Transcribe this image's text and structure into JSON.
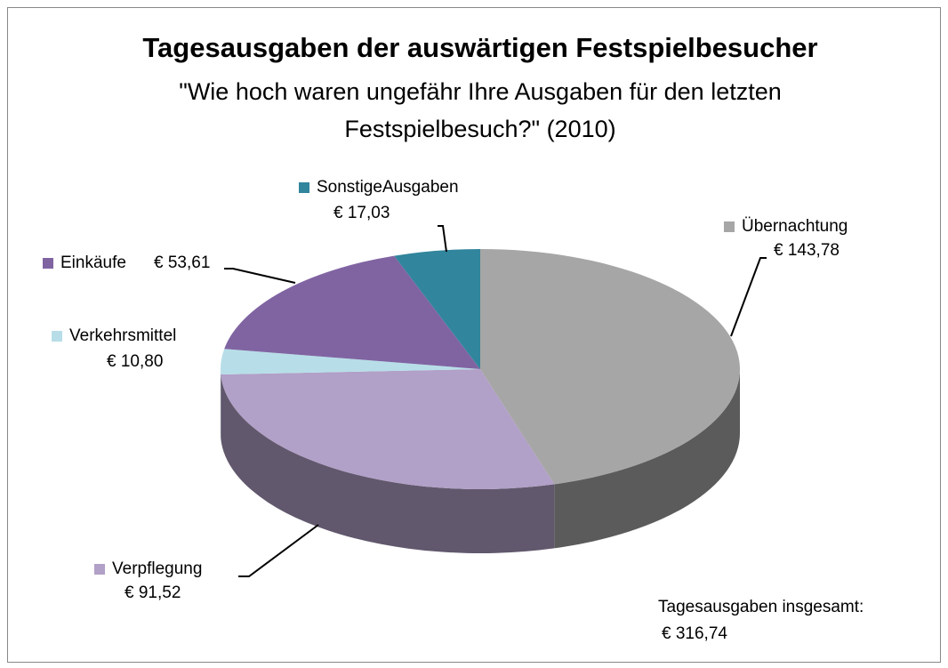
{
  "chart_data": {
    "type": "pie",
    "title": "Tagesausgaben der auswärtigen Festspielbesucher",
    "subtitle": "\"Wie hoch waren ungefähr Ihre Ausgaben für den letzten Festspielbesuch?\" (2010)",
    "categories": [
      "Übernachtung",
      "Verpflegung",
      "Verkehrsmittel",
      "Einkäufe",
      "SonstigeAusgaben"
    ],
    "values": [
      143.78,
      91.52,
      10.8,
      53.61,
      17.03
    ],
    "value_labels": [
      "€ 143,78",
      "€ 91,52",
      "€ 10,80",
      "€ 53,61",
      "€ 17,03"
    ],
    "colors": [
      "#a6a6a6",
      "#b1a0c7",
      "#b7dee8",
      "#8064a2",
      "#31859c"
    ],
    "annotations": [
      "Tagesausgaben insgesamt:",
      "€ 316,74"
    ]
  }
}
